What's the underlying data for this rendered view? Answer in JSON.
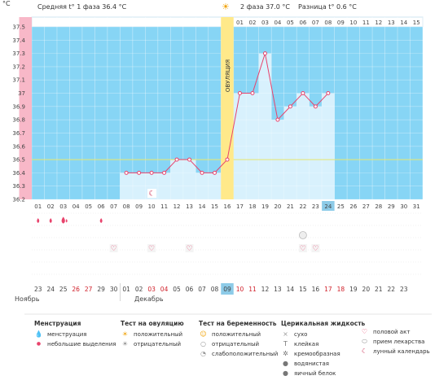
{
  "header": {
    "phase1_label": "Средняя t° 1 фаза",
    "phase1_value": "36.4 °C",
    "phase2_label": "2 фаза",
    "phase2_value": "37.0 °C",
    "diff_label": "Разница t°",
    "diff_value": "0.6 °C",
    "unit": "°C",
    "ovulation_label": "ОВУЛЯЦИЯ"
  },
  "chart_data": {
    "type": "line",
    "ylim": [
      36.2,
      37.5
    ],
    "yticks": [
      "37.5",
      "37.4",
      "37.3",
      "37.2",
      "37.1",
      "37",
      "36.9",
      "36.8",
      "36.7",
      "36.6",
      "36.5",
      "36.4",
      "36.3",
      "36.2"
    ],
    "x": [
      "01",
      "02",
      "03",
      "04",
      "05",
      "06",
      "07",
      "08",
      "09",
      "10",
      "11",
      "12",
      "13",
      "14",
      "15",
      "16",
      "17",
      "18",
      "19",
      "20",
      "21",
      "22",
      "23",
      "24",
      "25",
      "26",
      "27",
      "28",
      "29",
      "30",
      "31"
    ],
    "temperatures": [
      null,
      null,
      null,
      null,
      null,
      null,
      null,
      36.4,
      36.4,
      36.4,
      36.4,
      36.5,
      36.5,
      36.4,
      36.4,
      36.5,
      37.0,
      37.0,
      37.3,
      36.8,
      36.9,
      37.0,
      36.9,
      37.0,
      null,
      null,
      null,
      null,
      null,
      null,
      null
    ],
    "coverline": 36.5,
    "current_day": "24",
    "ovulation_day": "16",
    "phase2_days": [
      "01",
      "02",
      "03",
      "04",
      "05",
      "06",
      "07",
      "08",
      "09",
      "10",
      "11",
      "12",
      "13",
      "14",
      "15"
    ],
    "period_day": "14",
    "calendar_days": [
      "23",
      "24",
      "25",
      "26",
      "27",
      "29",
      "30",
      "01",
      "02",
      "03",
      "04",
      "05",
      "06",
      "07",
      "08",
      "09",
      "10",
      "11",
      "12",
      "13",
      "14",
      "15",
      "16",
      "17",
      "18",
      "19",
      "20",
      "21",
      "22",
      "23"
    ],
    "calendar_red": [
      "26",
      "27",
      "03",
      "04",
      "10",
      "11",
      "17",
      "18"
    ],
    "months": [
      "Ноябрь",
      "Декабрь"
    ],
    "menstruation_marks": {
      "01": "small",
      "02": "small",
      "03": "big",
      "06": "small"
    },
    "intercourse_days": [
      "07",
      "10",
      "13",
      "22",
      "23"
    ],
    "moon_day": "10",
    "fluid_day": "22"
  },
  "legend": {
    "menstruation": {
      "title": "Менструация",
      "items": [
        "менструация",
        "небольшие выделения"
      ]
    },
    "ovulation_test": {
      "title": "Тест на овуляцию",
      "items": [
        "положительный",
        "отрицательный"
      ]
    },
    "pregnancy_test": {
      "title": "Тест на беременность",
      "items": [
        "положительный",
        "отрицательный",
        "слабоположительный"
      ]
    },
    "cervical_fluid": {
      "title": "Церикальная жидкость",
      "items": [
        "сухо",
        "клейкая",
        "кремообразная",
        "водянистая",
        "яичный белок"
      ]
    },
    "other": {
      "items": [
        "половой акт",
        "прием лекарства",
        "лунный календарь"
      ]
    }
  },
  "colors": {
    "bg": "#87d5f5",
    "fill": "#d8f1fd",
    "line": "#e8436c",
    "ovulation": "#ffe98a",
    "period": "#f8b8c8",
    "coverline": "#e6e66e",
    "current": "#8dcbe8"
  }
}
